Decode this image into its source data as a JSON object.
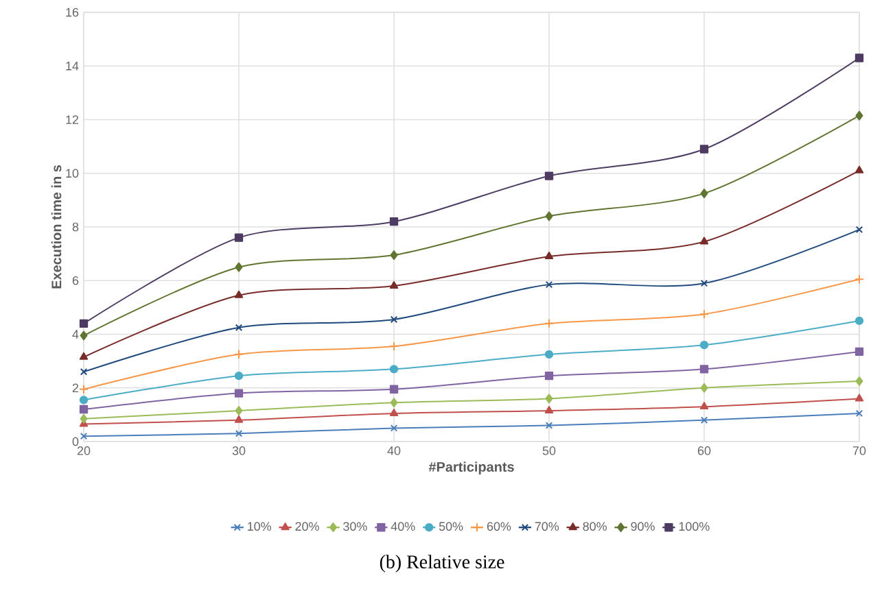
{
  "chart_data": {
    "type": "line",
    "xlabel": "#Participants",
    "ylabel": "Execution time in s",
    "x": [
      20,
      30,
      40,
      50,
      60,
      70
    ],
    "xlim": [
      20,
      70
    ],
    "xticks": [
      20,
      30,
      40,
      50,
      60,
      70
    ],
    "ylim": [
      0,
      16
    ],
    "yticks": [
      0,
      2,
      4,
      6,
      8,
      10,
      12,
      14,
      16
    ],
    "grid": true,
    "legend": "bottom",
    "line_style": "solid",
    "annotations": [
      "(b) Relative size"
    ],
    "series": [
      {
        "name": "10%",
        "color": "#4a7ebb",
        "marker": "cross",
        "values": [
          0.2,
          0.3,
          0.5,
          0.6,
          0.8,
          1.05
        ]
      },
      {
        "name": "20%",
        "color": "#c0504d",
        "marker": "triangle",
        "values": [
          0.65,
          0.8,
          1.05,
          1.15,
          1.3,
          1.6
        ]
      },
      {
        "name": "30%",
        "color": "#9bbb59",
        "marker": "diamond",
        "values": [
          0.85,
          1.15,
          1.45,
          1.6,
          2.0,
          2.25
        ]
      },
      {
        "name": "40%",
        "color": "#8064a2",
        "marker": "square",
        "values": [
          1.2,
          1.8,
          1.95,
          2.45,
          2.7,
          3.35
        ]
      },
      {
        "name": "50%",
        "color": "#4bacc6",
        "marker": "circle",
        "values": [
          1.55,
          2.45,
          2.7,
          3.25,
          3.6,
          4.5
        ]
      },
      {
        "name": "60%",
        "color": "#f79646",
        "marker": "plus",
        "values": [
          1.95,
          3.25,
          3.55,
          4.4,
          4.75,
          6.05
        ]
      },
      {
        "name": "70%",
        "color": "#1f497d",
        "marker": "cross",
        "values": [
          2.6,
          4.25,
          4.55,
          5.85,
          5.9,
          7.9
        ]
      },
      {
        "name": "80%",
        "color": "#772c2a",
        "marker": "triangle",
        "values": [
          3.15,
          5.45,
          5.8,
          6.9,
          7.45,
          10.1
        ]
      },
      {
        "name": "90%",
        "color": "#5f7530",
        "marker": "diamond",
        "values": [
          3.95,
          6.5,
          6.95,
          8.4,
          9.25,
          12.15
        ]
      },
      {
        "name": "100%",
        "color": "#4d3b62",
        "marker": "square",
        "values": [
          4.4,
          7.6,
          8.2,
          9.9,
          10.9,
          14.3
        ]
      }
    ]
  }
}
